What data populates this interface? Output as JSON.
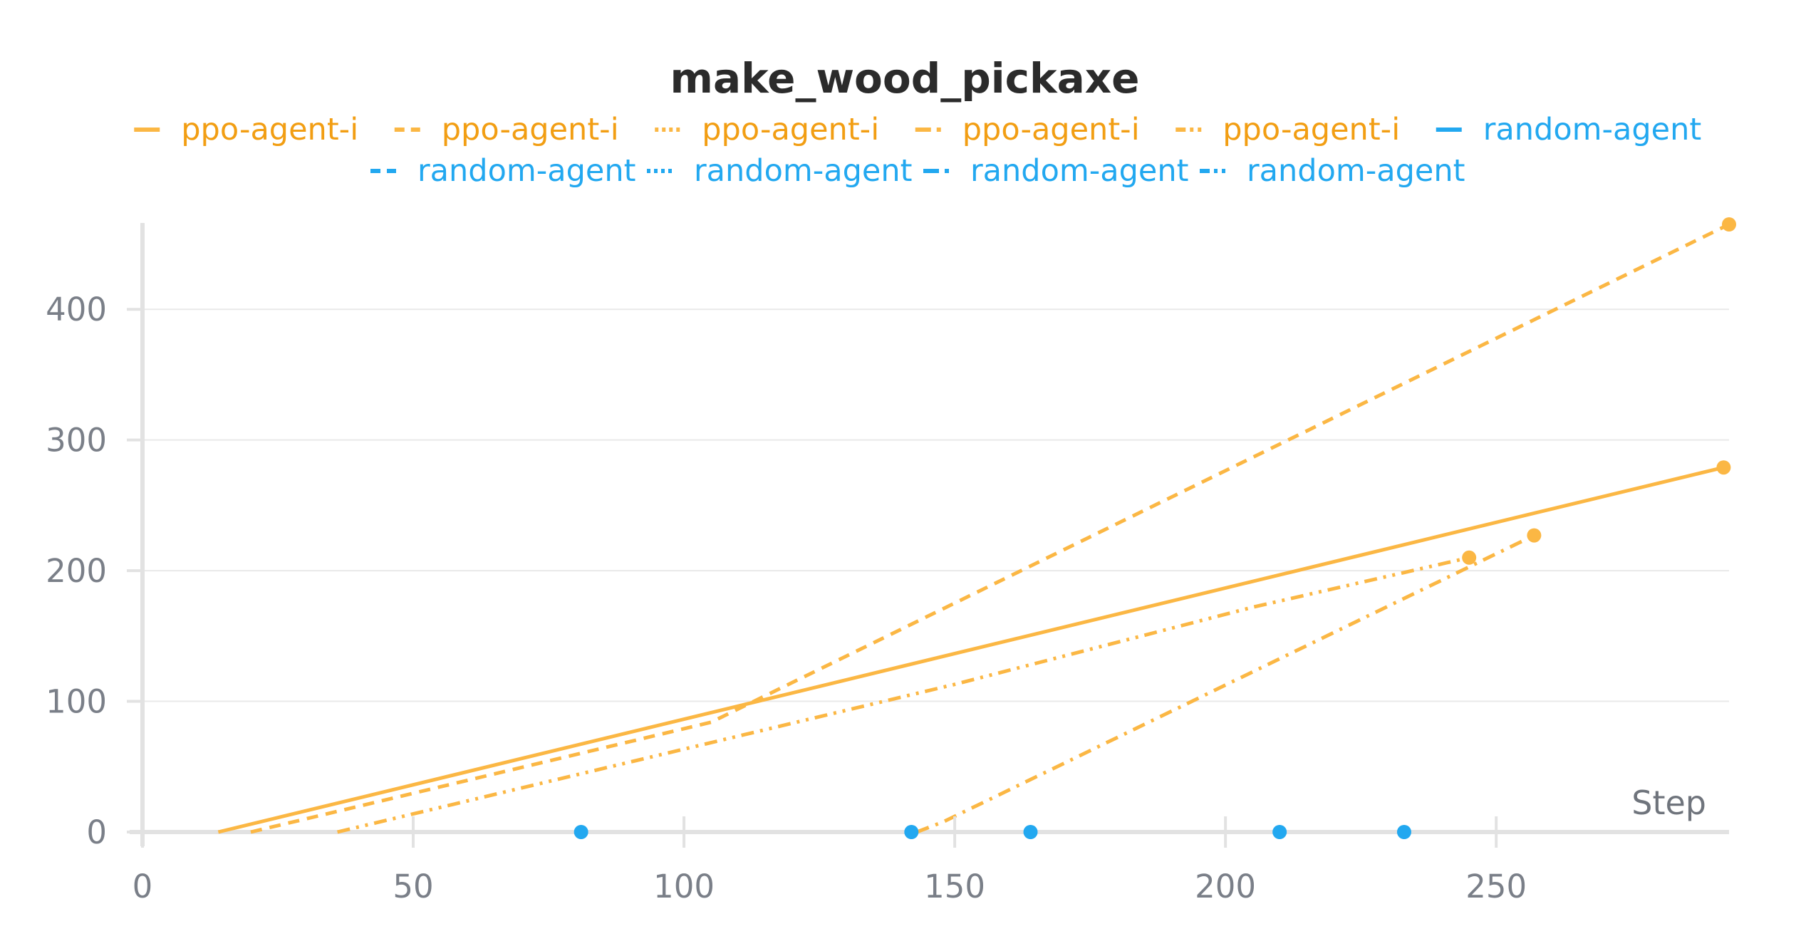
{
  "chart_data": {
    "type": "line",
    "title": "make_wood_pickaxe",
    "xlabel": "Step",
    "ylabel": "",
    "xlim": [
      0,
      293
    ],
    "ylim": [
      0,
      465
    ],
    "xticks": [
      0,
      50,
      100,
      150,
      200,
      250
    ],
    "yticks": [
      0,
      100,
      200,
      300,
      400
    ],
    "grid": "horizontal",
    "legend_position": "top-center",
    "colors": {
      "ppo": "#fbb744",
      "random": "#22a8f0",
      "legend_ppo_text": "#f29e13"
    },
    "series": [
      {
        "name": "ppo-agent-i",
        "dash": "solid",
        "points": [
          [
            14,
            0
          ],
          [
            260,
            247
          ],
          [
            292,
            279
          ]
        ]
      },
      {
        "name": "ppo-agent-i",
        "dash": "dashed",
        "points": [
          [
            20,
            0
          ],
          [
            105,
            84
          ],
          [
            293,
            465
          ]
        ]
      },
      {
        "name": "ppo-agent-i",
        "dash": "dotted",
        "points": []
      },
      {
        "name": "ppo-agent-i",
        "dash": "dashdot",
        "points": [
          [
            143,
            0
          ],
          [
            148,
            8
          ],
          [
            257,
            227
          ]
        ]
      },
      {
        "name": "ppo-agent-i",
        "dash": "dashdotdot",
        "points": [
          [
            36,
            0
          ],
          [
            150,
            113
          ],
          [
            205,
            172
          ],
          [
            245,
            210
          ]
        ]
      },
      {
        "name": "random-agent",
        "dash": "solid",
        "points": [
          [
            81,
            0
          ]
        ]
      },
      {
        "name": "random-agent",
        "dash": "dashed",
        "points": [
          [
            142,
            0
          ]
        ]
      },
      {
        "name": "random-agent",
        "dash": "dotted",
        "points": [
          [
            164,
            0
          ]
        ]
      },
      {
        "name": "random-agent",
        "dash": "dashdot",
        "points": [
          [
            210,
            0
          ]
        ]
      },
      {
        "name": "random-agent",
        "dash": "dashdotdot",
        "points": [
          [
            233,
            0
          ]
        ]
      }
    ]
  }
}
